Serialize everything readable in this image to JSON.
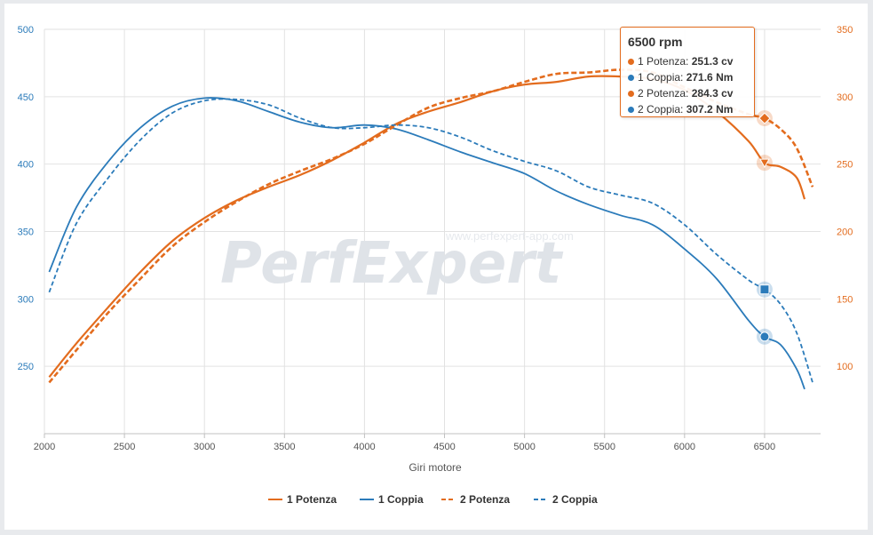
{
  "colors": {
    "potenza": "#e36c1e",
    "coppia": "#2b7bba",
    "grid": "#e2e2e2"
  },
  "watermark": {
    "logo": "PerfExpert",
    "url": "www.perfexpert-app.com"
  },
  "chart_data": {
    "type": "line",
    "xlabel": "Giri motore",
    "xlim": [
      2000,
      6850
    ],
    "x_ticks": [
      2000,
      2500,
      3000,
      3500,
      4000,
      4500,
      5000,
      5500,
      6000,
      6500
    ],
    "y_left": {
      "lim": [
        200,
        500
      ],
      "ticks": [
        250,
        300,
        350,
        400,
        450,
        500
      ]
    },
    "y_right": {
      "lim": [
        50,
        350
      ],
      "ticks": [
        100,
        150,
        200,
        250,
        300,
        350
      ]
    },
    "grid": true,
    "legend_position": "bottom-center",
    "series": [
      {
        "name": "1 Potenza",
        "axis": "right",
        "style": "solid",
        "x": [
          2030,
          2200,
          2400,
          2600,
          2800,
          3000,
          3200,
          3400,
          3600,
          3800,
          4000,
          4200,
          4400,
          4600,
          4800,
          5000,
          5200,
          5400,
          5600,
          5800,
          6000,
          6200,
          6400,
          6500,
          6600,
          6700,
          6750
        ],
        "values": [
          92,
          117,
          144,
          170,
          193,
          210,
          223,
          233,
          242,
          253,
          266,
          280,
          289,
          296,
          304,
          309,
          311,
          315,
          315,
          313,
          305,
          289,
          267,
          251,
          248,
          240,
          224
        ]
      },
      {
        "name": "1 Coppia",
        "axis": "left",
        "style": "solid",
        "x": [
          2030,
          2200,
          2400,
          2600,
          2800,
          3000,
          3200,
          3400,
          3600,
          3800,
          4000,
          4200,
          4400,
          4600,
          4800,
          5000,
          5200,
          5400,
          5600,
          5800,
          6000,
          6200,
          6400,
          6500,
          6600,
          6700,
          6750
        ],
        "values": [
          320,
          368,
          402,
          427,
          443,
          449,
          447,
          439,
          431,
          427,
          429,
          426,
          418,
          409,
          401,
          393,
          380,
          370,
          362,
          355,
          337,
          315,
          284,
          272,
          266,
          248,
          233
        ]
      },
      {
        "name": "2 Potenza",
        "axis": "right",
        "style": "dashed",
        "x": [
          2030,
          2200,
          2400,
          2600,
          2800,
          3000,
          3200,
          3400,
          3600,
          3800,
          4000,
          4200,
          4400,
          4600,
          4800,
          5000,
          5200,
          5400,
          5600,
          5800,
          6000,
          6200,
          6400,
          6500,
          6600,
          6700,
          6800
        ],
        "values": [
          88,
          112,
          140,
          165,
          189,
          207,
          222,
          235,
          245,
          254,
          265,
          279,
          292,
          299,
          304,
          311,
          317,
          318,
          320,
          318,
          307,
          296,
          287,
          284,
          276,
          262,
          233
        ]
      },
      {
        "name": "2 Coppia",
        "axis": "left",
        "style": "dashed",
        "x": [
          2030,
          2200,
          2400,
          2600,
          2800,
          3000,
          3200,
          3400,
          3600,
          3800,
          4000,
          4200,
          4400,
          4600,
          4800,
          5000,
          5200,
          5400,
          5600,
          5800,
          6000,
          6200,
          6400,
          6500,
          6600,
          6700,
          6800
        ],
        "values": [
          305,
          356,
          390,
          418,
          438,
          447,
          448,
          444,
          434,
          427,
          427,
          429,
          427,
          420,
          410,
          402,
          395,
          383,
          377,
          371,
          355,
          333,
          314,
          307,
          296,
          275,
          238
        ]
      }
    ],
    "tooltip": {
      "title": "6500 rpm",
      "x": 6500,
      "rows": [
        {
          "series": "1 Potenza",
          "label": "1 Potenza: ",
          "value": "251.3 cv"
        },
        {
          "series": "1 Coppia",
          "label": "1 Coppia: ",
          "value": "271.6 Nm"
        },
        {
          "series": "2 Potenza",
          "label": "2 Potenza: ",
          "value": "284.3 cv"
        },
        {
          "series": "2 Coppia",
          "label": "2 Coppia: ",
          "value": "307.2 Nm"
        }
      ]
    }
  }
}
